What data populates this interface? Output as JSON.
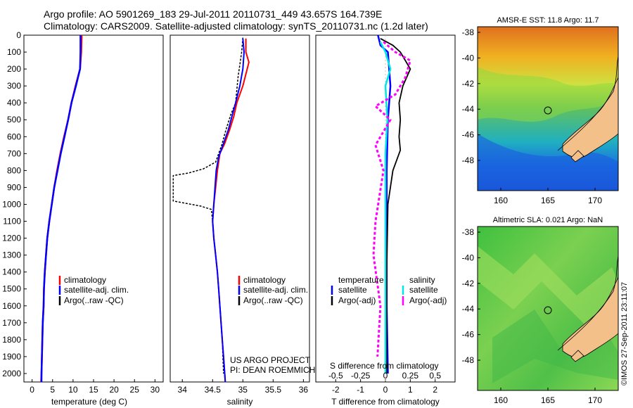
{
  "title": {
    "line1": "Argo profile: AO 5901269_183 29-Jul-2011 20110731_449 43.657S 164.739E",
    "line2": "Climatology: CARS2009. Satellite-adjusted climatology: synTS_20110731.nc (1.2d later)"
  },
  "colors": {
    "clim": "#ff0000",
    "sat": "#0000ff",
    "argo": "#000000",
    "sat_s": "#00e5e5",
    "argo_s": "#ff00ff"
  },
  "chart_data": [
    {
      "type": "line",
      "xlabel": "temperature (deg C)",
      "xlim": [
        -2,
        32
      ],
      "ylim": [
        2050,
        0
      ],
      "xticks": [
        "0",
        "5",
        "10",
        "15",
        "20",
        "25",
        "30"
      ],
      "xtick_values": [
        0,
        5,
        10,
        15,
        20,
        25,
        30
      ],
      "yticks": [
        "0",
        "100",
        "200",
        "300",
        "400",
        "500",
        "600",
        "700",
        "800",
        "900",
        "1000",
        "1100",
        "1200",
        "1300",
        "1400",
        "1500",
        "1600",
        "1700",
        "1800",
        "1900",
        "2000"
      ],
      "ytick_values": [
        0,
        100,
        200,
        300,
        400,
        500,
        600,
        700,
        800,
        900,
        1000,
        1100,
        1200,
        1300,
        1400,
        1500,
        1600,
        1700,
        1800,
        1900,
        2000
      ],
      "legend": [
        "climatology",
        "satellite-adj. clim.",
        "Argo(..raw -QC)"
      ],
      "series": [
        {
          "name": "climatology",
          "points": [
            [
              12.1,
              0
            ],
            [
              12.0,
              100
            ],
            [
              11.7,
              200
            ],
            [
              10.6,
              300
            ],
            [
              9.6,
              400
            ],
            [
              8.8,
              500
            ],
            [
              7.8,
              600
            ],
            [
              6.9,
              700
            ],
            [
              6.1,
              800
            ],
            [
              5.4,
              900
            ],
            [
              4.8,
              1000
            ],
            [
              4.2,
              1100
            ],
            [
              3.7,
              1200
            ],
            [
              3.4,
              1300
            ],
            [
              3.1,
              1400
            ],
            [
              2.9,
              1500
            ],
            [
              2.8,
              1600
            ],
            [
              2.6,
              1700
            ],
            [
              2.5,
              1800
            ],
            [
              2.4,
              1900
            ],
            [
              2.3,
              2000
            ],
            [
              2.2,
              2050
            ]
          ]
        },
        {
          "name": "satellite-adj. clim.",
          "points": [
            [
              11.8,
              0
            ],
            [
              11.8,
              100
            ],
            [
              11.7,
              200
            ],
            [
              10.7,
              300
            ],
            [
              9.6,
              400
            ],
            [
              8.8,
              500
            ],
            [
              7.9,
              600
            ],
            [
              7.0,
              700
            ],
            [
              6.2,
              800
            ],
            [
              5.4,
              900
            ],
            [
              4.8,
              1000
            ],
            [
              4.2,
              1100
            ],
            [
              3.7,
              1200
            ],
            [
              3.4,
              1300
            ],
            [
              3.1,
              1400
            ],
            [
              2.9,
              1500
            ],
            [
              2.8,
              1600
            ],
            [
              2.6,
              1700
            ],
            [
              2.5,
              1800
            ],
            [
              2.4,
              1900
            ],
            [
              2.3,
              2000
            ],
            [
              2.3,
              2050
            ]
          ]
        }
      ]
    },
    {
      "type": "line",
      "xlabel": "salinity",
      "xlim": [
        33.8,
        36.1
      ],
      "ylim": [
        2050,
        0
      ],
      "xticks": [
        "34",
        "34.5",
        "35",
        "35.5",
        "36"
      ],
      "xtick_values": [
        34,
        34.5,
        35,
        35.5,
        36
      ],
      "legend": [
        "climatology",
        "satellite-adj. clim.",
        "Argo(..raw -QC)"
      ],
      "annotation": [
        "US ARGO PROJECT",
        "PI: DEAN ROEMMICH"
      ],
      "series": [
        {
          "name": "climatology",
          "points": [
            [
              35.05,
              20
            ],
            [
              35.05,
              100
            ],
            [
              35.1,
              160
            ],
            [
              35.0,
              300
            ],
            [
              34.9,
              400
            ],
            [
              34.85,
              480
            ],
            [
              34.78,
              560
            ],
            [
              34.7,
              640
            ],
            [
              34.62,
              700
            ],
            [
              34.58,
              800
            ],
            [
              34.55,
              900
            ],
            [
              34.52,
              1000
            ],
            [
              34.5,
              1100
            ],
            [
              34.52,
              1200
            ],
            [
              34.55,
              1300
            ],
            [
              34.58,
              1400
            ],
            [
              34.6,
              1500
            ],
            [
              34.62,
              1600
            ],
            [
              34.64,
              1700
            ],
            [
              34.66,
              1800
            ],
            [
              34.68,
              1900
            ],
            [
              34.7,
              2000
            ],
            [
              34.71,
              2050
            ]
          ]
        },
        {
          "name": "satellite-adj. clim.",
          "points": [
            [
              35.0,
              20
            ],
            [
              35.02,
              100
            ],
            [
              35.0,
              200
            ],
            [
              34.95,
              300
            ],
            [
              34.88,
              400
            ],
            [
              34.82,
              480
            ],
            [
              34.76,
              560
            ],
            [
              34.68,
              640
            ],
            [
              34.6,
              720
            ],
            [
              34.56,
              800
            ],
            [
              34.54,
              900
            ],
            [
              34.52,
              1000
            ],
            [
              34.5,
              1100
            ],
            [
              34.52,
              1200
            ],
            [
              34.55,
              1300
            ],
            [
              34.58,
              1400
            ],
            [
              34.6,
              1500
            ],
            [
              34.62,
              1600
            ],
            [
              34.64,
              1700
            ],
            [
              34.66,
              1800
            ],
            [
              34.68,
              1900
            ],
            [
              34.7,
              2000
            ],
            [
              34.71,
              2050
            ]
          ]
        },
        {
          "name": "Argo",
          "points": [
            [
              35.0,
              15
            ],
            [
              34.98,
              100
            ],
            [
              34.92,
              250
            ],
            [
              34.88,
              400
            ],
            [
              34.8,
              470
            ],
            [
              34.72,
              560
            ],
            [
              34.65,
              650
            ],
            [
              34.6,
              700
            ],
            [
              34.55,
              750
            ],
            [
              34.35,
              790
            ],
            [
              34.1,
              815
            ],
            [
              33.85,
              830
            ],
            [
              33.85,
              980
            ],
            [
              34.0,
              990
            ],
            [
              34.3,
              1010
            ],
            [
              34.48,
              1030
            ],
            [
              34.5,
              1100
            ],
            [
              34.52,
              1200
            ],
            [
              34.55,
              1300
            ],
            [
              34.58,
              1400
            ],
            [
              34.6,
              1500
            ],
            [
              34.62,
              1600
            ],
            [
              34.64,
              1700
            ],
            [
              34.66,
              1800
            ],
            [
              34.67,
              1900
            ],
            [
              34.68,
              2000
            ]
          ]
        }
      ]
    },
    {
      "type": "line",
      "xlabel": "T difference from climatology",
      "xlabel_top": "S difference from climatology",
      "xlim": [
        -2.8,
        2.8
      ],
      "ylim": [
        2050,
        0
      ],
      "xticks": [
        "-2",
        "-1",
        "0",
        "1",
        "2"
      ],
      "xtick_values": [
        -2,
        -1,
        0,
        1,
        2
      ],
      "xticks_top": [
        "-0.5",
        "-0.25",
        "0",
        "0.25",
        "0.5"
      ],
      "legend_t": {
        "header": "temperature",
        "items": [
          "satellite",
          "Argo(-adj)"
        ]
      },
      "legend_s": {
        "header": "salinity",
        "items": [
          "satellite",
          "Argo(-adj)"
        ]
      },
      "series": [
        {
          "name": "T satellite",
          "points": [
            [
              -0.3,
              0
            ],
            [
              -0.2,
              60
            ],
            [
              0.1,
              100
            ],
            [
              0.15,
              200
            ],
            [
              0.2,
              300
            ],
            [
              0.1,
              500
            ],
            [
              0.05,
              800
            ],
            [
              0.05,
              1200
            ],
            [
              0.05,
              1600
            ],
            [
              0.1,
              2000
            ]
          ]
        },
        {
          "name": "T Argo",
          "points": [
            [
              -0.2,
              20
            ],
            [
              0.3,
              60
            ],
            [
              0.6,
              100
            ],
            [
              1.0,
              200
            ],
            [
              0.7,
              300
            ],
            [
              0.55,
              400
            ],
            [
              0.6,
              500
            ],
            [
              0.55,
              600
            ],
            [
              0.6,
              680
            ],
            [
              0.3,
              800
            ],
            [
              0.1,
              1000
            ],
            [
              0.05,
              1400
            ],
            [
              0.05,
              2000
            ]
          ]
        },
        {
          "name": "S satellite",
          "points": [
            [
              -0.05,
              40
            ],
            [
              0.0,
              100
            ],
            [
              0.05,
              200
            ],
            [
              0.0,
              300
            ],
            [
              0.02,
              500
            ],
            [
              0.0,
              700
            ],
            [
              0.0,
              1000
            ],
            [
              0.0,
              1500
            ],
            [
              0.0,
              2000
            ]
          ]
        },
        {
          "name": "S Argo",
          "points": [
            [
              -0.02,
              40
            ],
            [
              0.1,
              100
            ],
            [
              0.25,
              150
            ],
            [
              0.2,
              250
            ],
            [
              0.1,
              350
            ],
            [
              -0.1,
              420
            ],
            [
              0.05,
              500
            ],
            [
              -0.1,
              650
            ],
            [
              -0.02,
              800
            ],
            [
              -0.1,
              1100
            ],
            [
              -0.12,
              1300
            ],
            [
              -0.05,
              1600
            ],
            [
              -0.08,
              1900
            ]
          ]
        }
      ]
    }
  ],
  "maps": [
    {
      "title": "AMSR-E SST: 11.8 Argo: 11.7",
      "xticks": [
        "160",
        "165",
        "170"
      ],
      "yticks": [
        "-38",
        "-40",
        "-42",
        "-44",
        "-46",
        "-48"
      ]
    },
    {
      "title": "Altimetric SLA: 0.021 Argo: NaN",
      "xticks": [
        "160",
        "165",
        "170"
      ],
      "yticks": [
        "-38",
        "-40",
        "-42",
        "-44",
        "-46",
        "-48"
      ]
    }
  ],
  "footer": "©IMOS 27-Sep-2011 23:11:07"
}
